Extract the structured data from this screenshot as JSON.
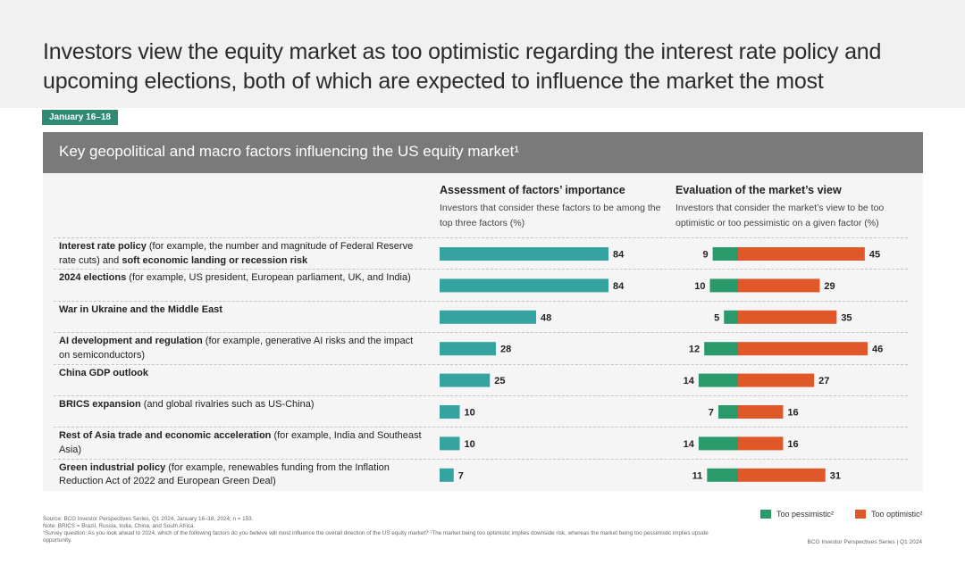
{
  "headline": "Investors view the equity market as too optimistic regarding the interest rate policy and upcoming elections, both of which are expected to influence the market the most",
  "date_badge": "January 16–18",
  "panel_title": "Key geopolitical and macro factors influencing the US equity market¹",
  "columns": {
    "importance": {
      "title": "Assessment of factors’ importance",
      "subtitle": "Investors that consider these factors to be among the top three factors (%)"
    },
    "market_view": {
      "title": "Evaluation of the market’s view",
      "subtitle": "Investors that consider the market’s view to be too optimistic or too pessimistic on a given factor (%)"
    }
  },
  "rows": [
    {
      "bold": "Interest rate policy",
      "text1": " (for example, the number and magnitude of Federal Reserve rate cuts) and ",
      "bold2": "soft economic landing or recession risk",
      "text2": ""
    },
    {
      "bold": "2024 elections",
      "text1": " (for example, US president, European parliament, UK, and India)",
      "bold2": "",
      "text2": ""
    },
    {
      "bold": "War in Ukraine and the Middle East",
      "text1": "",
      "bold2": "",
      "text2": ""
    },
    {
      "bold": "AI development and regulation",
      "text1": " (for example, generative AI risks and the impact on semiconductors)",
      "bold2": "",
      "text2": ""
    },
    {
      "bold": "China GDP outlook",
      "text1": "",
      "bold2": "",
      "text2": ""
    },
    {
      "bold": "BRICS expansion",
      "text1": " (and global rivalries such as US-China)",
      "bold2": "",
      "text2": ""
    },
    {
      "bold": "Rest of Asia trade and economic acceleration",
      "text1": " (for example, India and Southeast Asia)",
      "bold2": "",
      "text2": ""
    },
    {
      "bold": "Green industrial policy",
      "text1": " (for example, renewables funding from the Inflation Reduction Act of 2022 and European Green Deal)",
      "bold2": "",
      "text2": ""
    }
  ],
  "chart_data": [
    {
      "type": "bar",
      "orientation": "horizontal",
      "title": "Assessment of factors’ importance",
      "categories": [
        "Interest rate policy and soft economic landing or recession risk",
        "2024 elections",
        "War in Ukraine and the Middle East",
        "AI development and regulation",
        "China GDP outlook",
        "BRICS expansion",
        "Rest of Asia trade and economic acceleration",
        "Green industrial policy"
      ],
      "values": [
        84,
        84,
        48,
        28,
        25,
        10,
        10,
        7
      ],
      "color": "#35a3a0",
      "unit": "%"
    },
    {
      "type": "bar",
      "orientation": "horizontal",
      "diverging": true,
      "title": "Evaluation of the market’s view",
      "categories": [
        "Interest rate policy and soft economic landing or recession risk",
        "2024 elections",
        "War in Ukraine and the Middle East",
        "AI development and regulation",
        "China GDP outlook",
        "BRICS expansion",
        "Rest of Asia trade and economic acceleration",
        "Green industrial policy"
      ],
      "series": [
        {
          "name": "Too pessimistic²",
          "values": [
            9,
            10,
            5,
            12,
            14,
            7,
            14,
            11
          ],
          "color": "#2a9a6b"
        },
        {
          "name": "Too optimistic²",
          "values": [
            45,
            29,
            35,
            46,
            27,
            16,
            16,
            31
          ],
          "color": "#e0582a"
        }
      ],
      "legend": "bottom-right"
    }
  ],
  "legend": {
    "pessimistic": "Too pessimistic²",
    "optimistic": "Too optimistic²"
  },
  "footnotes": {
    "source": "Source: BCG Investor Perspectives Series, Q1 2024, January 16–18, 2024; n = 153.",
    "note": "Note: BRICS = Brazil, Russia, India, China, and South Africa.",
    "fn1": "¹Survey question: As you look ahead to 2024, which of the following factors do you believe will most influence the overall direction of the US equity market? ²The market being too optimistic implies downside risk, whereas the market being too pessimistic implies upside opportunity.",
    "right": "BCG Investor Perspectives Series | Q1 2024"
  }
}
